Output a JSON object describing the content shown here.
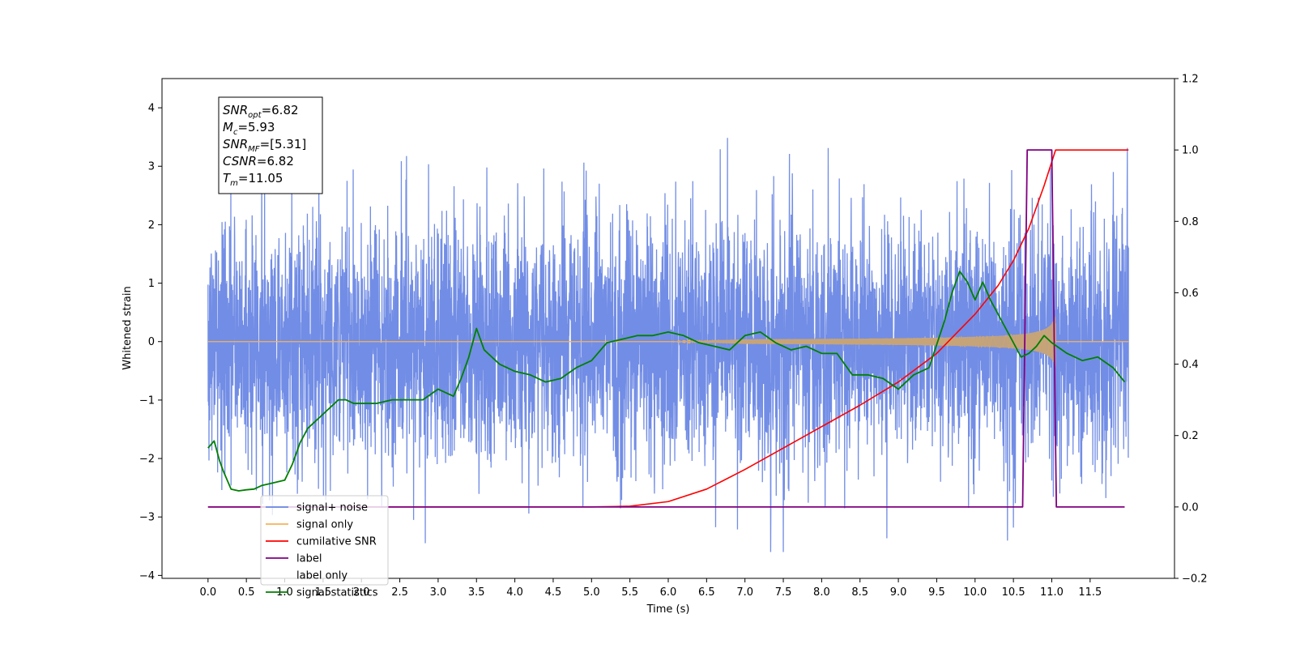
{
  "chart_data": {
    "type": "line",
    "xlabel": "Time (s)",
    "ylabel_left": "Whitened strain",
    "ylabel_right": "",
    "xlim": [
      -0.6,
      12.6
    ],
    "ylim_left": [
      -4.05,
      4.5
    ],
    "ylim_right": [
      -0.2,
      1.2
    ],
    "x_ticks": [
      0.0,
      0.5,
      1.0,
      1.5,
      2.0,
      2.5,
      3.0,
      3.5,
      4.0,
      4.5,
      5.0,
      5.5,
      6.0,
      6.5,
      7.0,
      7.5,
      8.0,
      8.5,
      9.0,
      9.5,
      10.0,
      10.5,
      11.0,
      11.5
    ],
    "x_tick_labels": [
      "0.0",
      "0.5",
      "1.0",
      "1.5",
      "2.0",
      "2.5",
      "3.0",
      "3.5",
      "4.0",
      "4.5",
      "5.0",
      "5.5",
      "6.0",
      "6.5",
      "7.0",
      "7.5",
      "8.0",
      "8.5",
      "9.0",
      "9.5",
      "10.0",
      "10.5",
      "11.0",
      "11.5"
    ],
    "y_left_ticks": [
      -4,
      -3,
      -2,
      -1,
      0,
      1,
      2,
      3,
      4
    ],
    "y_left_tick_labels": [
      "−4",
      "−3",
      "−2",
      "−1",
      "0",
      "1",
      "2",
      "3",
      "4"
    ],
    "y_right_ticks": [
      -0.2,
      0.0,
      0.2,
      0.4,
      0.6,
      0.8,
      1.0,
      1.2
    ],
    "y_right_tick_labels": [
      "−0.2",
      "0.0",
      "0.2",
      "0.4",
      "0.6",
      "0.8",
      "1.0",
      "1.2"
    ],
    "legend_position": "lower-left",
    "grid": false,
    "annotation": {
      "lines": [
        {
          "base": "SNR",
          "sub": "opt",
          "value": "=6.82"
        },
        {
          "base": "M",
          "sub": "c",
          "value": "=5.93"
        },
        {
          "base": "SNR",
          "sub": "MF",
          "value": "=[5.31]"
        },
        {
          "base": "CSNR",
          "sub": "",
          "value": "=6.82"
        },
        {
          "base": "T",
          "sub": "m",
          "value": "=11.05"
        }
      ]
    },
    "series": [
      {
        "name": "signal+ noise",
        "axis": "left",
        "color": "#6a87e4",
        "x_range": [
          0.0,
          12.0
        ],
        "noise_std": 1.0,
        "y_min": -3.6,
        "y_max": 4.1
      },
      {
        "name": "signal only",
        "axis": "left",
        "color": "#f5b358",
        "chirp": {
          "start": 6.0,
          "merger": 11.05,
          "end_amplitude": 0.45,
          "end": 12.0
        }
      },
      {
        "name": "cumilative SNR",
        "axis": "right",
        "color": "#ff0000",
        "x": [
          0.0,
          5.0,
          5.5,
          6.0,
          6.5,
          7.0,
          7.5,
          8.0,
          8.5,
          9.0,
          9.5,
          10.0,
          10.3,
          10.5,
          10.7,
          10.9,
          11.05,
          12.0
        ],
        "y": [
          0.0,
          0.0,
          0.002,
          0.015,
          0.05,
          0.105,
          0.165,
          0.225,
          0.285,
          0.35,
          0.43,
          0.54,
          0.62,
          0.69,
          0.78,
          0.9,
          1.0,
          1.0
        ]
      },
      {
        "name": "label",
        "axis": "right",
        "color": "#800080",
        "x": [
          0.0,
          10.62,
          10.68,
          11.0,
          11.06,
          11.95
        ],
        "y": [
          0.0,
          0.0,
          1.0,
          1.0,
          0.0,
          0.0
        ]
      },
      {
        "name": "label only",
        "axis": "right",
        "color": "#ffffff",
        "x": [],
        "y": []
      },
      {
        "name": "signal statistics",
        "axis": "right",
        "color": "#008000",
        "x": [
          0.0,
          0.08,
          0.15,
          0.2,
          0.3,
          0.4,
          0.5,
          0.6,
          0.7,
          0.8,
          0.9,
          1.0,
          1.1,
          1.2,
          1.3,
          1.4,
          1.5,
          1.6,
          1.7,
          1.8,
          1.9,
          2.0,
          2.2,
          2.4,
          2.6,
          2.8,
          3.0,
          3.2,
          3.3,
          3.4,
          3.5,
          3.6,
          3.8,
          4.0,
          4.2,
          4.4,
          4.6,
          4.8,
          5.0,
          5.2,
          5.4,
          5.6,
          5.8,
          6.0,
          6.2,
          6.4,
          6.6,
          6.8,
          7.0,
          7.2,
          7.4,
          7.6,
          7.8,
          8.0,
          8.2,
          8.4,
          8.6,
          8.8,
          9.0,
          9.2,
          9.4,
          9.6,
          9.7,
          9.8,
          9.9,
          10.0,
          10.1,
          10.2,
          10.3,
          10.4,
          10.5,
          10.6,
          10.7,
          10.8,
          10.9,
          11.0,
          11.2,
          11.4,
          11.6,
          11.8,
          11.95
        ],
        "y": [
          0.165,
          0.185,
          0.13,
          0.1,
          0.05,
          0.045,
          0.048,
          0.05,
          0.06,
          0.065,
          0.07,
          0.075,
          0.12,
          0.18,
          0.22,
          0.24,
          0.26,
          0.28,
          0.3,
          0.3,
          0.29,
          0.29,
          0.29,
          0.3,
          0.3,
          0.3,
          0.33,
          0.31,
          0.36,
          0.42,
          0.5,
          0.44,
          0.4,
          0.38,
          0.37,
          0.35,
          0.36,
          0.39,
          0.41,
          0.46,
          0.47,
          0.48,
          0.48,
          0.49,
          0.48,
          0.46,
          0.45,
          0.44,
          0.48,
          0.49,
          0.46,
          0.44,
          0.45,
          0.43,
          0.43,
          0.37,
          0.37,
          0.36,
          0.33,
          0.37,
          0.39,
          0.52,
          0.6,
          0.66,
          0.63,
          0.58,
          0.63,
          0.58,
          0.54,
          0.5,
          0.46,
          0.42,
          0.43,
          0.45,
          0.48,
          0.46,
          0.43,
          0.41,
          0.42,
          0.39,
          0.35
        ]
      }
    ]
  }
}
